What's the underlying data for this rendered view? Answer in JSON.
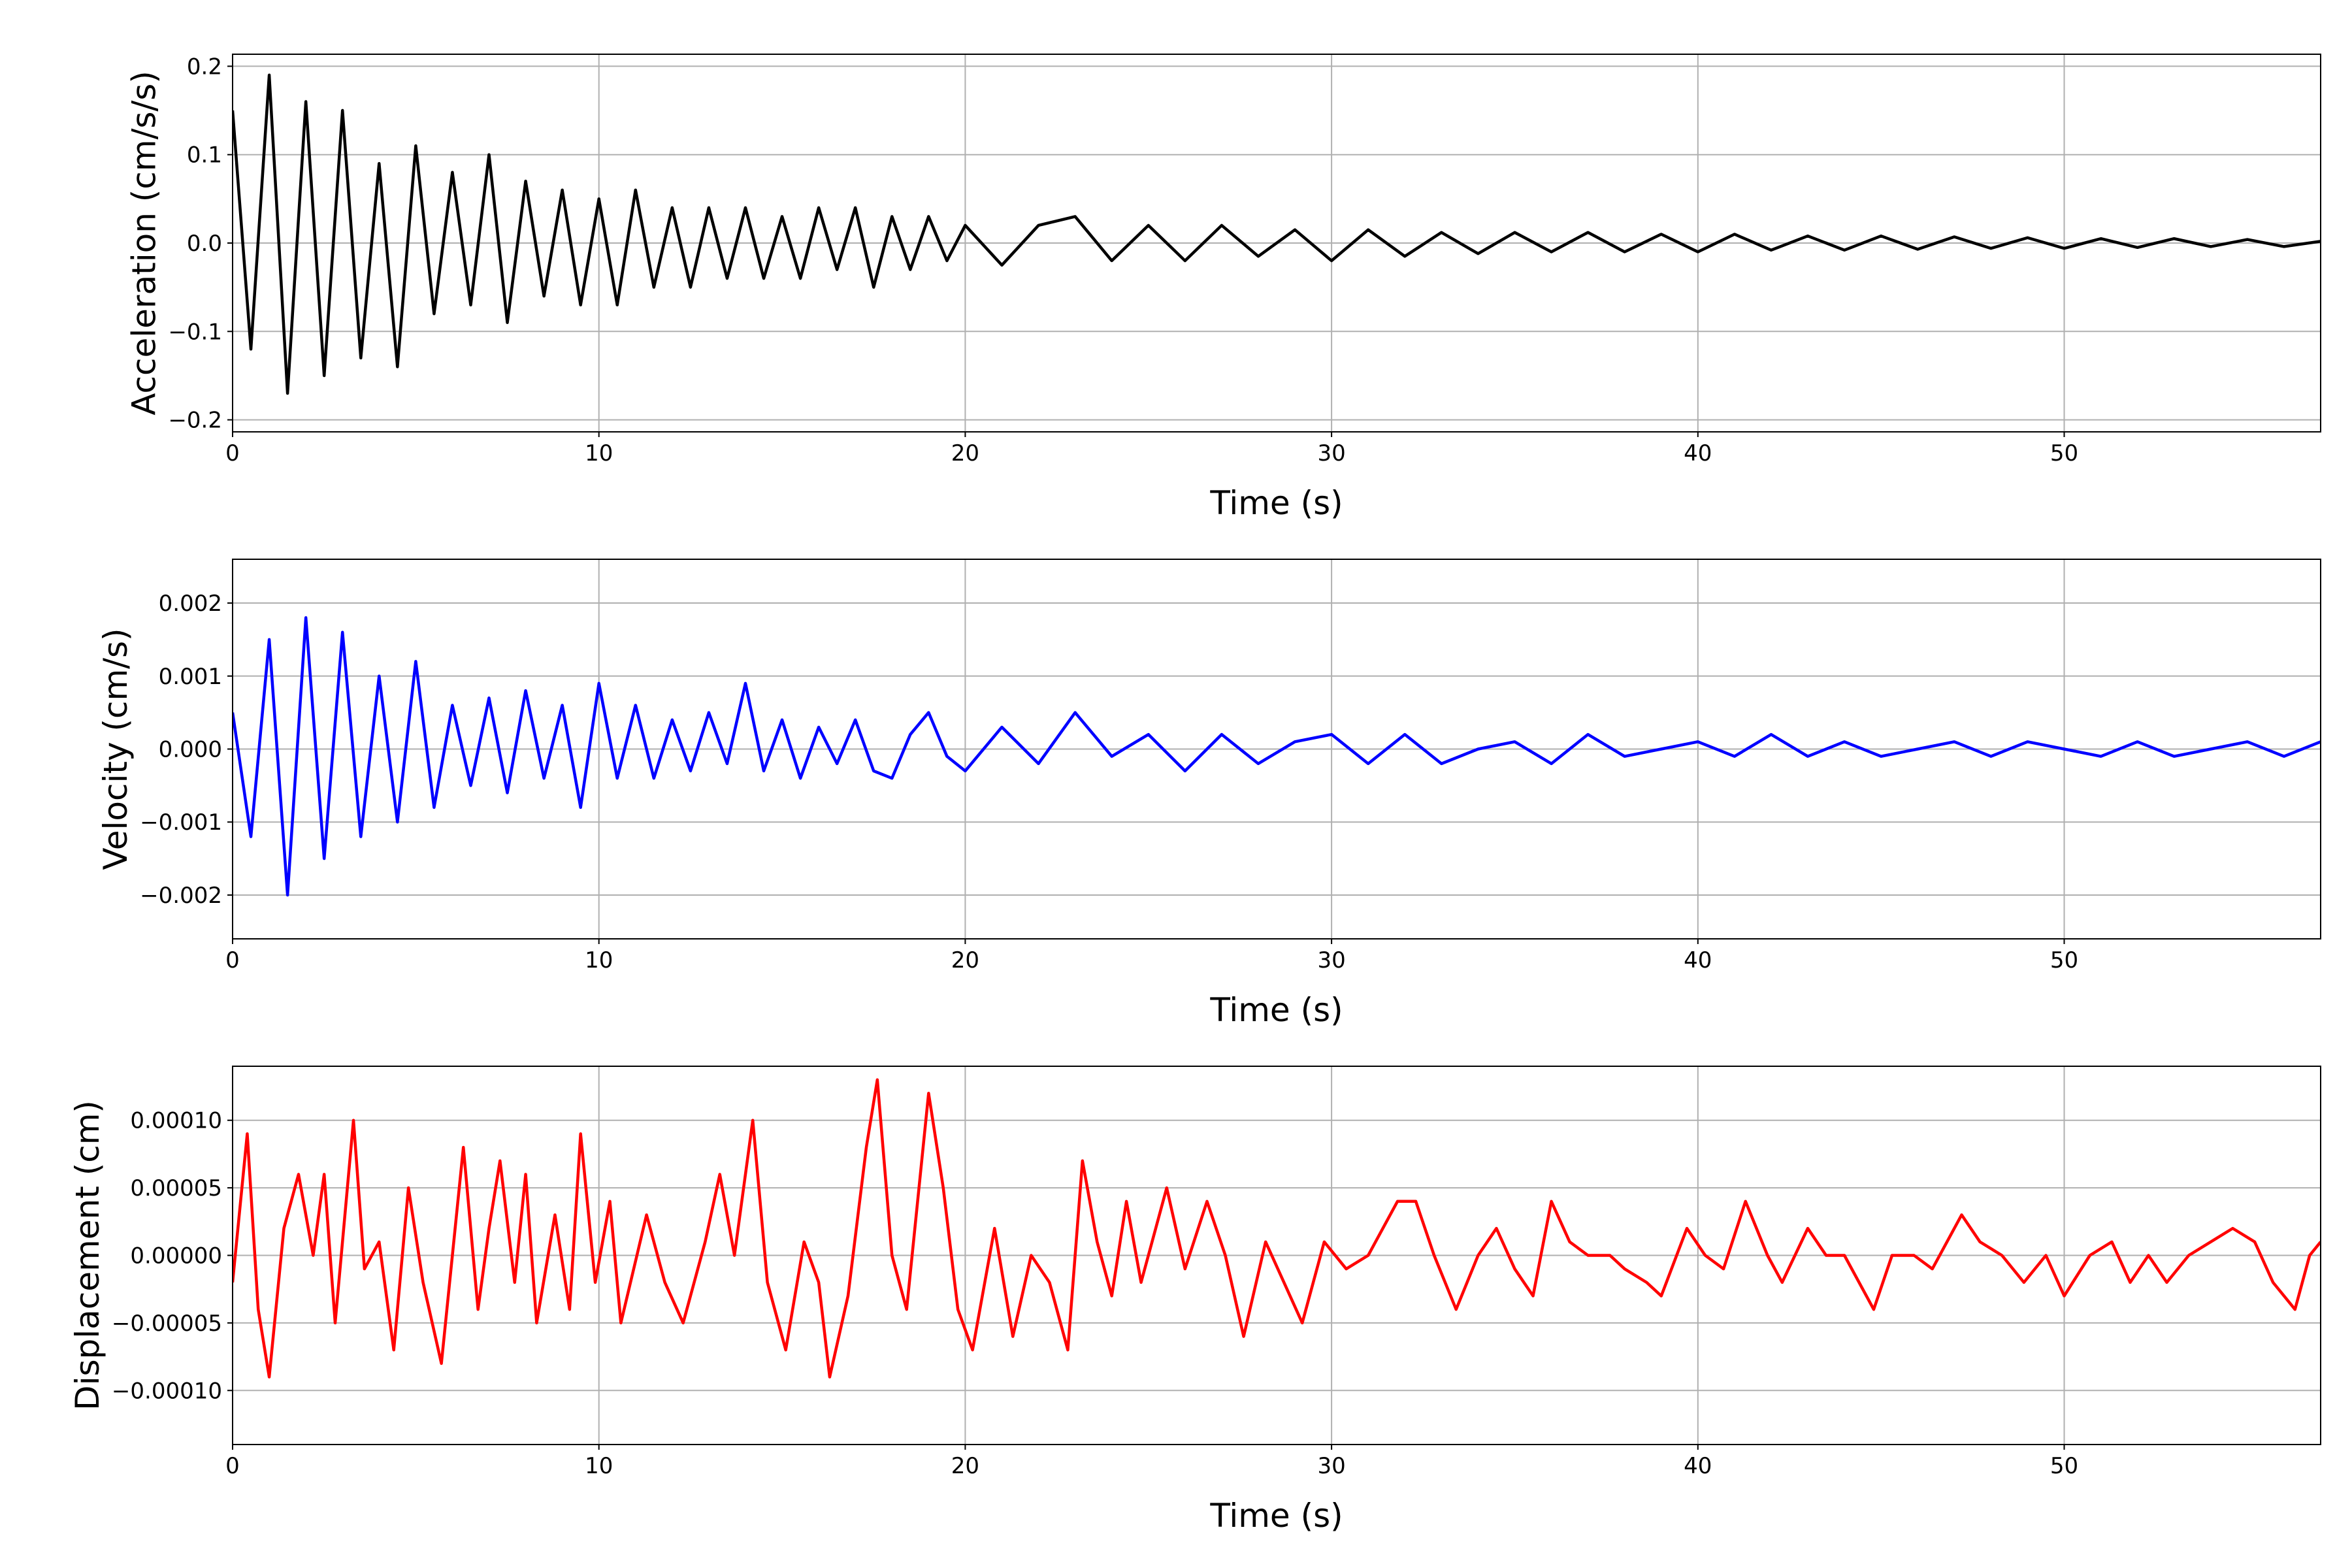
{
  "chart_data": [
    {
      "type": "line",
      "xlabel": "Time (s)",
      "ylabel": "Acceleration (cm/s/s)",
      "color": "#000000",
      "grid": true,
      "xlim": [
        0,
        57
      ],
      "xticks": [
        0,
        10,
        20,
        30,
        40,
        50
      ],
      "ylim": [
        -0.2136,
        0.2136
      ],
      "yticks": [
        {
          "value": -0.2,
          "label": "−0.2"
        },
        {
          "value": -0.1,
          "label": "−0.1"
        },
        {
          "value": 0,
          "label": "0.0"
        },
        0.1,
        0.2
      ],
      "x": [
        0,
        0.5,
        1,
        1.5,
        2,
        2.5,
        3,
        3.5,
        4,
        4.5,
        5,
        5.5,
        6,
        6.5,
        7,
        7.5,
        8,
        8.5,
        9,
        9.5,
        10,
        10.5,
        11,
        11.5,
        12,
        12.5,
        13,
        13.5,
        14,
        14.5,
        15,
        15.5,
        16,
        16.5,
        17,
        17.5,
        18,
        18.5,
        19,
        19.5,
        20,
        21,
        22,
        23,
        24,
        25,
        26,
        27,
        28,
        29,
        30,
        31,
        32,
        33,
        34,
        35,
        36,
        37,
        38,
        39,
        40,
        41,
        42,
        43,
        44,
        45,
        46,
        47,
        48,
        49,
        50,
        51,
        52,
        53,
        54,
        55,
        56,
        57
      ],
      "values": [
        0.15,
        -0.12,
        0.19,
        -0.17,
        0.16,
        -0.15,
        0.15,
        -0.13,
        0.09,
        -0.14,
        0.11,
        -0.08,
        0.08,
        -0.07,
        0.1,
        -0.09,
        0.07,
        -0.06,
        0.06,
        -0.07,
        0.05,
        -0.07,
        0.06,
        -0.05,
        0.04,
        -0.05,
        0.04,
        -0.04,
        0.04,
        -0.04,
        0.03,
        -0.04,
        0.04,
        -0.03,
        0.04,
        -0.05,
        0.03,
        -0.03,
        0.03,
        -0.02,
        0.02,
        -0.025,
        0.02,
        0.03,
        -0.02,
        0.02,
        -0.02,
        0.02,
        -0.015,
        0.015,
        -0.02,
        0.015,
        -0.015,
        0.012,
        -0.012,
        0.012,
        -0.01,
        0.012,
        -0.01,
        0.01,
        -0.01,
        0.01,
        -0.008,
        0.008,
        -0.008,
        0.008,
        -0.007,
        0.007,
        -0.006,
        0.006,
        -0.006,
        0.005,
        -0.005,
        0.005,
        -0.004,
        0.004,
        -0.004,
        0.002
      ]
    },
    {
      "type": "line",
      "xlabel": "Time (s)",
      "ylabel": "Velocity (cm/s)",
      "color": "#0000ff",
      "grid": true,
      "xlim": [
        0,
        57
      ],
      "xticks": [
        0,
        10,
        20,
        30,
        40,
        50
      ],
      "ylim": [
        -0.0026,
        0.0026
      ],
      "yticks": [
        {
          "value": -0.002,
          "label": "−0.002"
        },
        {
          "value": -0.001,
          "label": "−0.001"
        },
        {
          "value": 0,
          "label": "0.000"
        },
        0.001,
        0.002
      ],
      "x": [
        0,
        0.5,
        1,
        1.5,
        2,
        2.5,
        3,
        3.5,
        4,
        4.5,
        5,
        5.5,
        6,
        6.5,
        7,
        7.5,
        8,
        8.5,
        9,
        9.5,
        10,
        10.5,
        11,
        11.5,
        12,
        12.5,
        13,
        13.5,
        14,
        14.5,
        15,
        15.5,
        16,
        16.5,
        17,
        17.5,
        18,
        18.5,
        19,
        19.5,
        20,
        21,
        22,
        23,
        24,
        25,
        26,
        27,
        28,
        29,
        30,
        31,
        32,
        33,
        34,
        35,
        36,
        37,
        38,
        39,
        40,
        41,
        42,
        43,
        44,
        45,
        46,
        47,
        48,
        49,
        50,
        51,
        52,
        53,
        54,
        55,
        56,
        57
      ],
      "values": [
        0.0005,
        -0.0012,
        0.0015,
        -0.002,
        0.0018,
        -0.0015,
        0.0016,
        -0.0012,
        0.001,
        -0.001,
        0.0012,
        -0.0008,
        0.0006,
        -0.0005,
        0.0007,
        -0.0006,
        0.0008,
        -0.0004,
        0.0006,
        -0.0008,
        0.0009,
        -0.0004,
        0.0006,
        -0.0004,
        0.0004,
        -0.0003,
        0.0005,
        -0.0002,
        0.0009,
        -0.0003,
        0.0004,
        -0.0004,
        0.0003,
        -0.0002,
        0.0004,
        -0.0003,
        -0.0004,
        0.0002,
        0.0005,
        -0.0001,
        -0.0003,
        0.0003,
        -0.0002,
        0.0005,
        -0.0001,
        0.0002,
        -0.0003,
        0.0002,
        -0.0002,
        0.0001,
        0.0002,
        -0.0002,
        0.0002,
        -0.0002,
        0,
        0.0001,
        -0.0002,
        0.0002,
        -0.0001,
        0,
        0.0001,
        -0.0001,
        0.0002,
        -0.0001,
        0.0001,
        -0.0001,
        0,
        0.0001,
        -0.0001,
        0.0001,
        0,
        -0.0001,
        0.0001,
        -0.0001,
        0,
        0.0001,
        -0.0001,
        0.0001
      ]
    },
    {
      "type": "line",
      "xlabel": "Time (s)",
      "ylabel": "Displacement (cm)",
      "color": "#ff0000",
      "grid": true,
      "xlim": [
        0,
        57
      ],
      "xticks": [
        0,
        10,
        20,
        30,
        40,
        50
      ],
      "ylim": [
        -0.00014,
        0.00014
      ],
      "yticks": [
        {
          "value": -0.0001,
          "label": "−0.00010"
        },
        {
          "value": -5e-05,
          "label": "−0.00005"
        },
        {
          "value": 0,
          "label": "0.00000"
        },
        {
          "value": 5e-05,
          "label": "0.00005"
        },
        {
          "value": 0.0001,
          "label": "0.00010"
        }
      ],
      "x": [
        0,
        0.4,
        0.7,
        1,
        1.4,
        1.8,
        2.2,
        2.5,
        2.8,
        3.3,
        3.6,
        4,
        4.4,
        4.8,
        5.2,
        5.7,
        6,
        6.3,
        6.7,
        7,
        7.3,
        7.7,
        8,
        8.3,
        8.8,
        9.2,
        9.5,
        9.9,
        10.3,
        10.6,
        11.3,
        11.8,
        12.3,
        12.9,
        13.3,
        13.7,
        14.2,
        14.6,
        15.1,
        15.6,
        16,
        16.3,
        16.8,
        17.3,
        17.6,
        18,
        18.4,
        19,
        19.4,
        19.8,
        20.2,
        20.8,
        21.3,
        21.8,
        22.3,
        22.8,
        23.2,
        23.6,
        24,
        24.4,
        24.8,
        25.5,
        26,
        26.6,
        27.1,
        27.6,
        28.2,
        28.7,
        29.2,
        29.8,
        30.4,
        31,
        31.8,
        32.3,
        32.8,
        33.4,
        34,
        34.5,
        35,
        35.5,
        36,
        36.5,
        37,
        37.6,
        38,
        38.6,
        39,
        39.7,
        40.2,
        40.7,
        41.3,
        41.9,
        42.3,
        43,
        43.5,
        44,
        44.8,
        45.3,
        45.9,
        46.4,
        47.2,
        47.7,
        48.3,
        48.9,
        49.5,
        50,
        50.7,
        51.3,
        51.8,
        52.3,
        52.8,
        53.4,
        54,
        54.6,
        55.2,
        55.7,
        56.3,
        56.7,
        57
      ],
      "values": [
        -2e-05,
        9e-05,
        -4e-05,
        -9e-05,
        2e-05,
        6e-05,
        0,
        6e-05,
        -5e-05,
        0.0001,
        -1e-05,
        1e-05,
        -7e-05,
        5e-05,
        -2e-05,
        -8e-05,
        0,
        8e-05,
        -4e-05,
        2e-05,
        7e-05,
        -2e-05,
        6e-05,
        -5e-05,
        3e-05,
        -4e-05,
        9e-05,
        -2e-05,
        4e-05,
        -5e-05,
        3e-05,
        -2e-05,
        -5e-05,
        1e-05,
        6e-05,
        0,
        0.0001,
        -2e-05,
        -7e-05,
        1e-05,
        -2e-05,
        -9e-05,
        -3e-05,
        8e-05,
        0.00013,
        0,
        -4e-05,
        0.00012,
        5e-05,
        -4e-05,
        -7e-05,
        2e-05,
        -6e-05,
        0,
        -2e-05,
        -7e-05,
        7e-05,
        1e-05,
        -3e-05,
        4e-05,
        -2e-05,
        5e-05,
        -1e-05,
        4e-05,
        0,
        -6e-05,
        1e-05,
        -2e-05,
        -5e-05,
        1e-05,
        -1e-05,
        0,
        4e-05,
        4e-05,
        0,
        -4e-05,
        0,
        2e-05,
        -1e-05,
        -3e-05,
        4e-05,
        1e-05,
        0,
        0,
        -1e-05,
        -2e-05,
        -3e-05,
        2e-05,
        0,
        -1e-05,
        4e-05,
        0,
        -2e-05,
        2e-05,
        0,
        0,
        -4e-05,
        0,
        0,
        -1e-05,
        3e-05,
        1e-05,
        0,
        -2e-05,
        0,
        -3e-05,
        0,
        1e-05,
        -2e-05,
        0,
        -2e-05,
        0,
        1e-05,
        2e-05,
        1e-05,
        -2e-05,
        -4e-05,
        0,
        1e-05
      ]
    }
  ]
}
